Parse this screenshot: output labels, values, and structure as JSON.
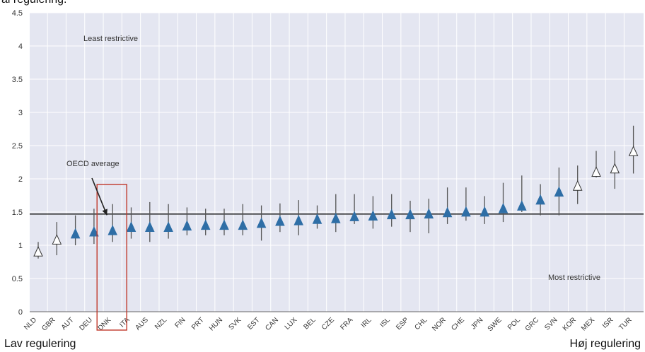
{
  "captions": {
    "top_cut": "al regulering.",
    "left": "Lav regulering",
    "right": "Høj regulering"
  },
  "colors": {
    "plot_bg": "#e4e6f1",
    "grid": "#ffffff",
    "avg_line": "#333333",
    "error_bar": "#555555",
    "filled_marker": "#2e6ea6",
    "hollow_marker_fill": "#ffffff",
    "hollow_marker_stroke": "#333333",
    "highlight_box": "#c0392b",
    "axis_text": "#333333"
  },
  "chart_data": {
    "type": "scatter",
    "title": "",
    "xlabel": "",
    "ylabel": "",
    "ylim": [
      0,
      4.5
    ],
    "yticks": [
      0,
      0.5,
      1,
      1.5,
      2,
      2.5,
      3,
      3.5,
      4,
      4.5
    ],
    "ytick_labels": [
      "0",
      "0.5",
      "1",
      "1.5",
      "2",
      "2.5",
      "3",
      "3.5",
      "4",
      "4.5"
    ],
    "grid": true,
    "oecd_average": 1.47,
    "highlighted_category": "DNK",
    "categories": [
      "NLD",
      "GBR",
      "AUT",
      "DEU",
      "DNK",
      "ITA",
      "AUS",
      "NZL",
      "FIN",
      "PRT",
      "HUN",
      "SVK",
      "EST",
      "CAN",
      "LUX",
      "BEL",
      "CZE",
      "FRA",
      "IRL",
      "ISL",
      "ESP",
      "CHL",
      "NOR",
      "CHE",
      "JPN",
      "SWE",
      "POL",
      "GRC",
      "SVN",
      "KOR",
      "MEX",
      "ISR",
      "TUR"
    ],
    "tick_labels": [
      "NLD",
      "GBR",
      "AUT",
      "DEU",
      "DNK",
      "ITA",
      "AUS",
      "NZL",
      "FIN",
      "PRT",
      "HUN",
      "SVK",
      "EST",
      "CAN",
      "LUX",
      "BEL",
      "CZE",
      "FRA",
      "IRL",
      "ISL",
      "ESP",
      "CHL",
      "NOR",
      "CHE",
      "JPN",
      "SWE",
      "POL",
      "GRC",
      "SVN",
      "KOR",
      "MEX",
      "ISR",
      "TUR"
    ],
    "values": [
      0.9,
      1.08,
      1.17,
      1.2,
      1.22,
      1.27,
      1.27,
      1.27,
      1.29,
      1.3,
      1.3,
      1.3,
      1.33,
      1.36,
      1.37,
      1.39,
      1.4,
      1.43,
      1.44,
      1.46,
      1.46,
      1.47,
      1.49,
      1.5,
      1.5,
      1.55,
      1.59,
      1.68,
      1.8,
      1.89,
      2.1,
      2.15,
      2.41
    ],
    "lower": [
      0.8,
      0.85,
      1.0,
      1.02,
      1.05,
      1.1,
      1.05,
      1.1,
      1.15,
      1.15,
      1.15,
      1.15,
      1.07,
      1.2,
      1.15,
      1.25,
      1.2,
      1.32,
      1.25,
      1.28,
      1.2,
      1.18,
      1.32,
      1.37,
      1.32,
      1.35,
      1.5,
      1.45,
      1.45,
      1.62,
      2.02,
      1.85,
      2.08
    ],
    "upper": [
      1.05,
      1.35,
      1.45,
      1.55,
      1.62,
      1.57,
      1.65,
      1.62,
      1.57,
      1.55,
      1.55,
      1.62,
      1.6,
      1.63,
      1.68,
      1.6,
      1.77,
      1.77,
      1.74,
      1.77,
      1.67,
      1.7,
      1.87,
      1.87,
      1.74,
      1.94,
      2.05,
      1.92,
      2.17,
      2.2,
      2.42,
      2.42,
      2.8
    ],
    "hollow": [
      true,
      true,
      false,
      false,
      false,
      false,
      false,
      false,
      false,
      false,
      false,
      false,
      false,
      false,
      false,
      false,
      false,
      false,
      false,
      false,
      false,
      false,
      false,
      false,
      false,
      false,
      false,
      false,
      false,
      true,
      true,
      true,
      true
    ],
    "annotations": {
      "least_restrictive": "Least restrictive",
      "most_restrictive": "Most restrictive",
      "oecd_average": "OECD average"
    }
  }
}
